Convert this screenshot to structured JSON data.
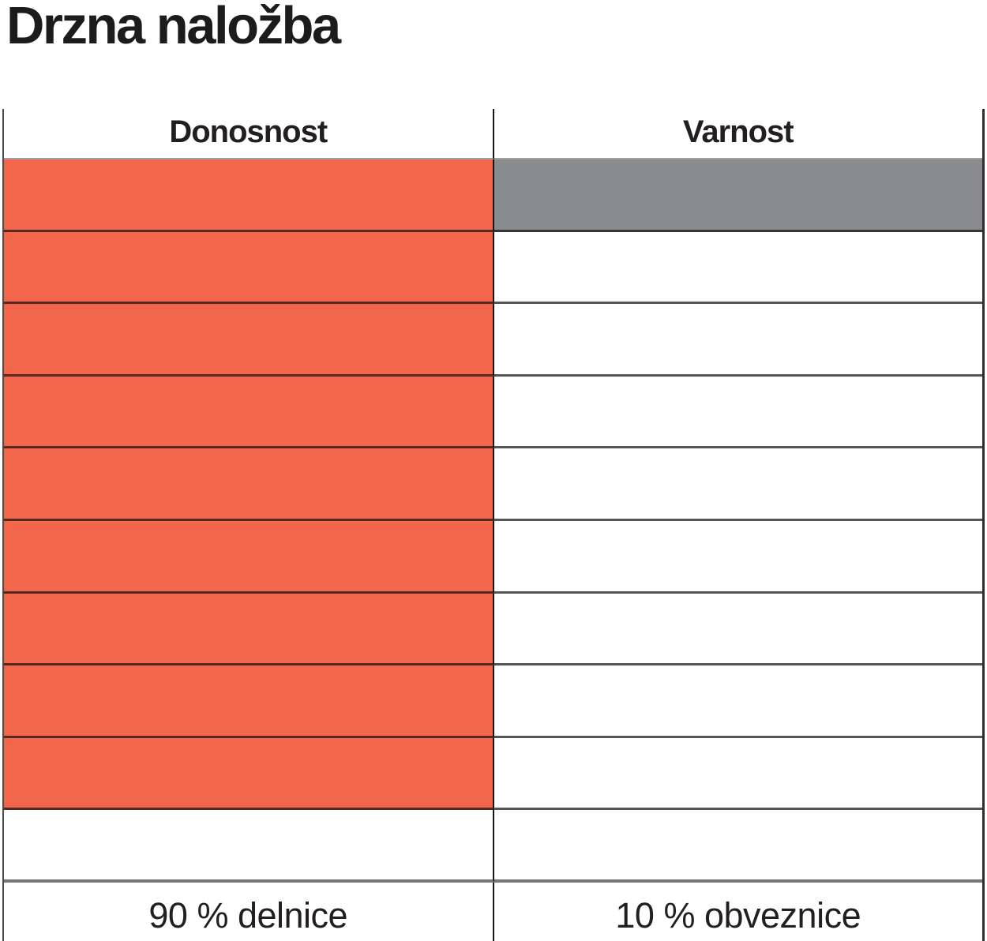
{
  "page": {
    "title": "Drzna naložba"
  },
  "table": {
    "headers": [
      "Donosnost",
      "Varnost"
    ],
    "rows_total": 10,
    "donosnost_filled": 9,
    "varnost_filled": 1,
    "footer": [
      "90 % delnice",
      "10 % obveznice"
    ]
  },
  "colors": {
    "donosnost_fill": "#F2664B",
    "varnost_fill": "#898B8E",
    "text": "#231F20"
  },
  "chart_data": {
    "type": "bar",
    "title": "Drzna naložba",
    "categories": [
      "Donosnost",
      "Varnost"
    ],
    "series": [
      {
        "name": "rating (rows filled, of 10)",
        "values": [
          9,
          1
        ]
      }
    ],
    "scale": {
      "min": 0,
      "max": 10,
      "unit": "rows",
      "orientation": "vertical pictogram, filled top-down"
    },
    "annotations": [
      "90 % delnice",
      "10 % obveznice"
    ],
    "colors": {
      "Donosnost": "#F2664B",
      "Varnost": "#898B8E"
    },
    "legend": "none",
    "grid": "horizontal row separators, vertical column divider, no top border"
  }
}
